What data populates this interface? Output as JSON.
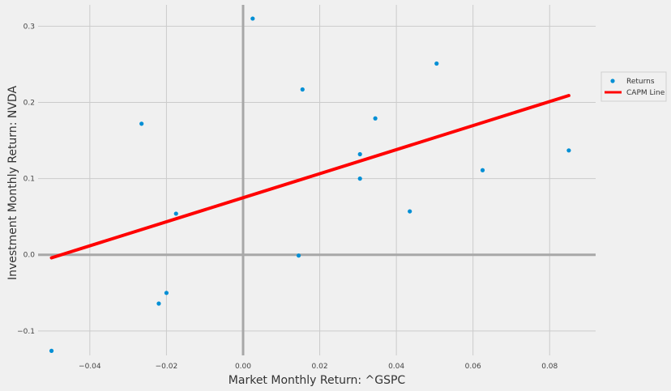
{
  "chart_data": {
    "type": "scatter",
    "xlabel": "Market Monthly Return: ^GSPC",
    "ylabel": "Investment Monthly Return: NVDA",
    "xlim": [
      -0.0535,
      0.092
    ],
    "ylim": [
      -0.132,
      0.328
    ],
    "xticks": [
      -0.04,
      -0.02,
      0.0,
      0.02,
      0.04,
      0.06,
      0.08
    ],
    "xtick_labels": [
      "−0.04",
      "−0.02",
      "0.00",
      "0.02",
      "0.04",
      "0.06",
      "0.08"
    ],
    "yticks": [
      -0.1,
      0.0,
      0.1,
      0.2,
      0.3
    ],
    "ytick_labels": [
      "−0.1",
      "0.0",
      "0.1",
      "0.2",
      "0.3"
    ],
    "grid": true,
    "legend_position": "right",
    "series": [
      {
        "name": "Returns",
        "kind": "scatter",
        "color": "#008fd5",
        "points": [
          {
            "x": -0.05,
            "y": -0.126
          },
          {
            "x": -0.022,
            "y": -0.064
          },
          {
            "x": -0.02,
            "y": -0.05
          },
          {
            "x": -0.0265,
            "y": 0.172
          },
          {
            "x": -0.0175,
            "y": 0.054
          },
          {
            "x": 0.0025,
            "y": 0.31
          },
          {
            "x": 0.0145,
            "y": -0.001
          },
          {
            "x": 0.0155,
            "y": 0.217
          },
          {
            "x": 0.0305,
            "y": 0.132
          },
          {
            "x": 0.0305,
            "y": 0.1
          },
          {
            "x": 0.0345,
            "y": 0.179
          },
          {
            "x": 0.0435,
            "y": 0.057
          },
          {
            "x": 0.0505,
            "y": 0.251
          },
          {
            "x": 0.0625,
            "y": 0.111
          },
          {
            "x": 0.085,
            "y": 0.137
          }
        ]
      },
      {
        "name": "CAPM Line",
        "kind": "line",
        "color": "#ff0000",
        "x": [
          -0.05,
          0.085
        ],
        "y": [
          -0.004,
          0.209
        ]
      }
    ]
  }
}
